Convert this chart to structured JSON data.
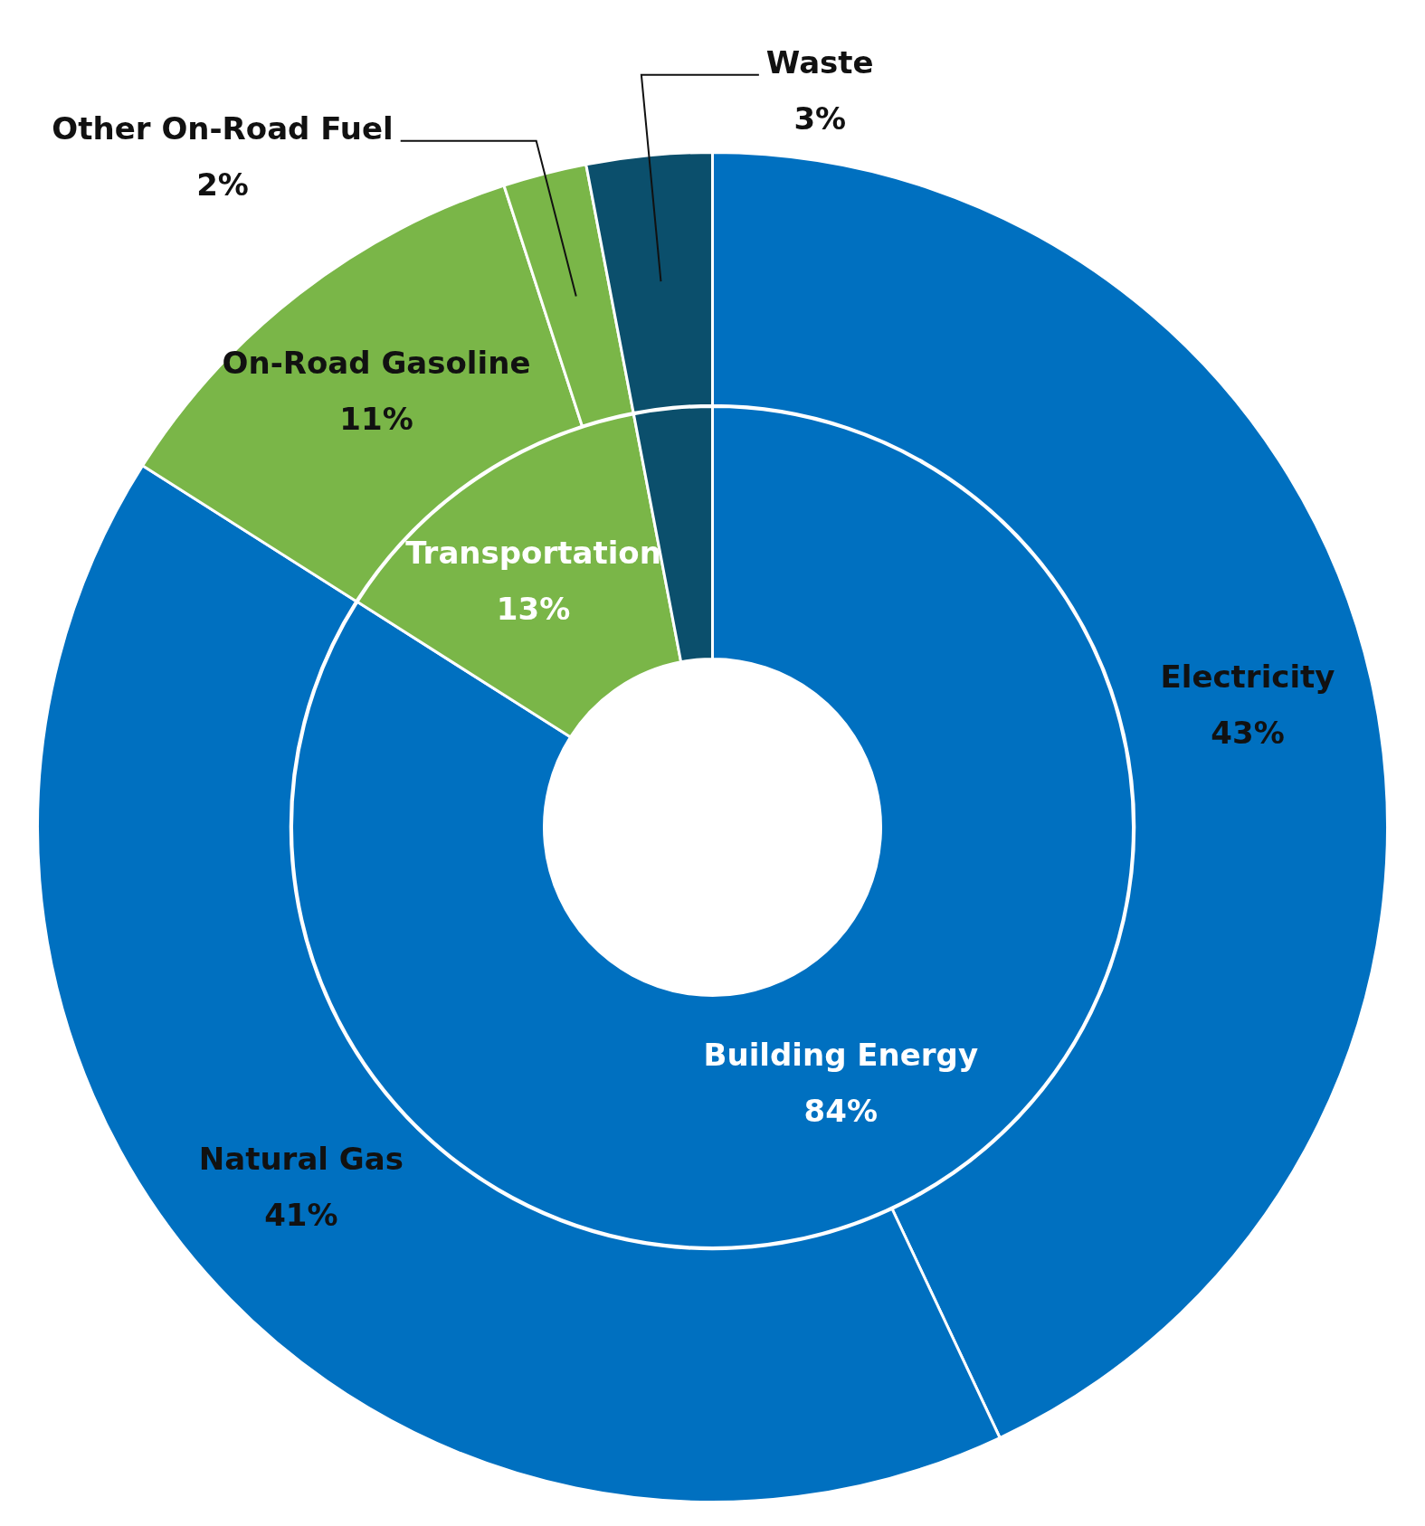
{
  "chart_data": [
    {
      "type": "donut",
      "categories": [
        "Electricity",
        "Natural Gas",
        "On-Road Gasoline",
        "Other On-Road Fuel",
        "Waste"
      ],
      "values": [
        43,
        41,
        11,
        2,
        3
      ],
      "colors": [
        "#0070c0",
        "#0070c0",
        "#7ab648",
        "#7ab648",
        "#0b4f6c"
      ],
      "value_labels": [
        "43%",
        "41%",
        "11%",
        "2%",
        "3%"
      ]
    },
    {
      "type": "donut",
      "categories": [
        "Building Energy",
        "Transportation",
        null
      ],
      "values": [
        84,
        13,
        3
      ],
      "colors": [
        "#0070c0",
        "#7ab648",
        "#0b4f6c"
      ],
      "value_labels": [
        "84%",
        "13%",
        null
      ]
    }
  ]
}
